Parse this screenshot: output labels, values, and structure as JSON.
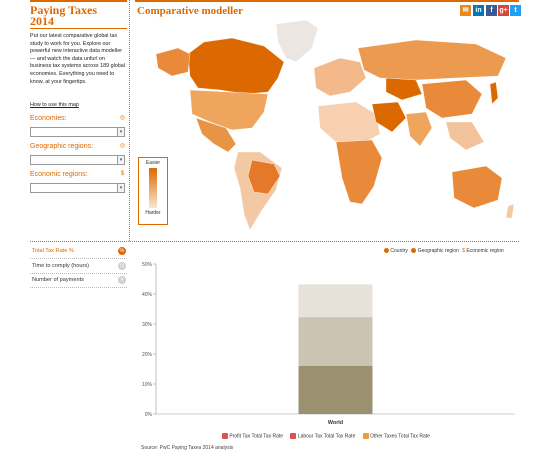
{
  "sidebar": {
    "title_line1": "Paying Taxes",
    "title_line2": "2014",
    "intro": "Put our latest comparative global tax study to work for you. Explore our powerful new interactive data modeller — and watch the data unfurl on business tax systems across 189 global economies. Everything you need to know, at your fingertips.",
    "how_to": "How to use this map",
    "filters": [
      {
        "label": "Economies:",
        "icon": "globe-icon"
      },
      {
        "label": "Geographic regions:",
        "icon": "globe-icon"
      },
      {
        "label": "Economic regions:",
        "icon": "dollar-icon"
      }
    ],
    "metrics": [
      {
        "label": "Total Tax Rate %",
        "active": true,
        "icon": "percent-icon"
      },
      {
        "label": "Time to comply (hours)",
        "active": false,
        "icon": "clock-icon"
      },
      {
        "label": "Number of payments",
        "active": false,
        "icon": "payments-icon"
      }
    ]
  },
  "header": {
    "title": "Comparative modeller",
    "share_icons": [
      "email-icon",
      "linkedin-icon",
      "facebook-icon",
      "share-icon",
      "google-plus-icon",
      "twitter-icon"
    ],
    "share_glyphs": [
      "✉",
      "in",
      "f",
      "⇪",
      "g+",
      "t"
    ]
  },
  "map_legend": {
    "top": "Easier",
    "bottom": "Harder"
  },
  "chart_legend_top": [
    {
      "label": "Country",
      "color": "#dc6900"
    },
    {
      "label": "Geographic region",
      "color": "#dc6900"
    },
    {
      "label": "Economic region",
      "color": "#dc6900"
    }
  ],
  "chart_data": {
    "type": "bar",
    "stacked": true,
    "categories": [
      "World"
    ],
    "ylim": [
      0,
      50
    ],
    "yticks": [
      "0%",
      "10%",
      "20%",
      "30%",
      "40%",
      "50%"
    ],
    "series": [
      {
        "name": "Profit Tax Total Tax Rate",
        "values": [
          16.1
        ],
        "color": "#9b9170"
      },
      {
        "name": "Labour Tax Total Tax Rate",
        "values": [
          16.2
        ],
        "color": "#cbc4b3"
      },
      {
        "name": "Other Taxes Total Tax Rate",
        "values": [
          10.9
        ],
        "color": "#e6e2da"
      }
    ],
    "legend_swatch_colors": [
      "#d9534f",
      "#d9534f",
      "#e8a13a"
    ]
  },
  "source": "Source: PwC Paying Taxes 2014 analysis"
}
